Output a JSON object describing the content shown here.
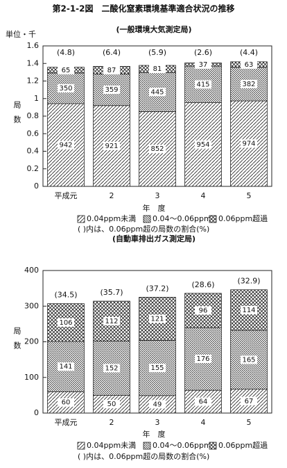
{
  "title": "第2-1-2図　二酸化窒素環境基準適合状況の推移",
  "chart_data": [
    {
      "type": "bar",
      "stacked": true,
      "subtitle": "(一般環境大気測定局)",
      "unit_label": "単位・千",
      "ylabel": "局数",
      "xlabel": "年　度",
      "categories": [
        "平成元",
        "2",
        "3",
        "4",
        "5"
      ],
      "series": [
        {
          "name": "0.04ppm未満",
          "color": "#222",
          "values": [
            0.942,
            0.921,
            0.852,
            0.954,
            0.974
          ],
          "value_labels": [
            "942",
            "921",
            "852",
            "954",
            "974"
          ]
        },
        {
          "name": "0.04～0.06ppm",
          "color": "#222",
          "values": [
            0.35,
            0.359,
            0.445,
            0.415,
            0.382
          ],
          "value_labels": [
            "350",
            "359",
            "445",
            "415",
            "382"
          ]
        },
        {
          "name": "0.06ppm超過",
          "color": "#222",
          "values": [
            0.065,
            0.087,
            0.081,
            0.037,
            0.063
          ],
          "value_labels": [
            "65",
            "87",
            "81",
            "37",
            "63"
          ]
        }
      ],
      "annotations": [
        "(4.8)",
        "(6.4)",
        "(5.9)",
        "(2.6)",
        "(4.4)"
      ],
      "note": "( )内は、0.06ppm超の局数の割合(%)",
      "ylim": [
        0,
        1.6
      ],
      "yticks": [
        0,
        0.2,
        0.4,
        0.6,
        0.8,
        1,
        1.2,
        1.4,
        1.6
      ]
    },
    {
      "type": "bar",
      "stacked": true,
      "subtitle": "(自動車排出ガス測定局)",
      "ylabel": "局数",
      "xlabel": "年　度",
      "categories": [
        "平成元",
        "2",
        "3",
        "4",
        "5"
      ],
      "series": [
        {
          "name": "0.04ppm未満",
          "color": "#222",
          "values": [
            60,
            50,
            49,
            64,
            67
          ]
        },
        {
          "name": "0.04～0.06ppm",
          "color": "#222",
          "values": [
            141,
            152,
            155,
            176,
            165
          ]
        },
        {
          "name": "0.06ppm超過",
          "color": "#222",
          "values": [
            106,
            112,
            121,
            96,
            114
          ]
        }
      ],
      "annotations": [
        "(34.5)",
        "(35.7)",
        "(37.2)",
        "(28.6)",
        "(32.9)"
      ],
      "note": "( )内は、0.06ppm超の局数の割合(%)",
      "ylim": [
        0,
        400
      ],
      "yticks": [
        0,
        100,
        200,
        300,
        400
      ]
    }
  ]
}
